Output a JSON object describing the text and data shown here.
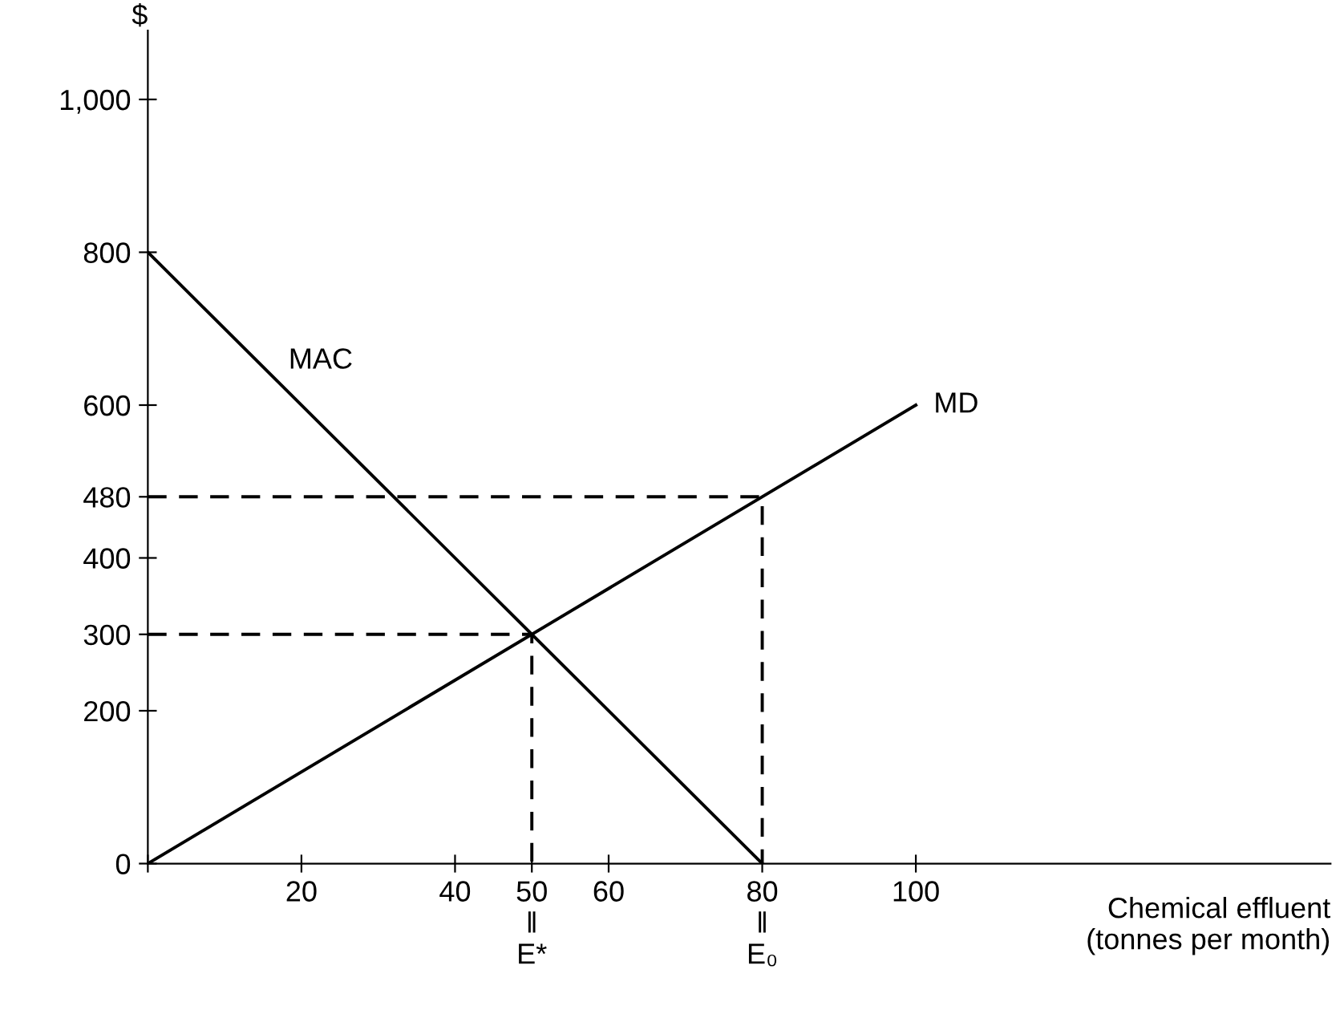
{
  "chart_data": {
    "type": "line",
    "xlabel": "Chemical effluent\n(tonnes per month)",
    "ylabel": "$",
    "xlim": [
      0,
      154
    ],
    "ylim": [
      0,
      1090
    ],
    "xticks": [
      {
        "value": 0,
        "label": null
      },
      20,
      40,
      {
        "value": 50,
        "label": "50\n‖\nE*"
      },
      60,
      {
        "value": 80,
        "label": "80\n‖\nE₀"
      },
      100
    ],
    "yticks": [
      0,
      200,
      300,
      400,
      480,
      600,
      800,
      {
        "value": 1000,
        "label": "1,000"
      }
    ],
    "grid": false,
    "legend": false,
    "series": [
      {
        "name": "MAC",
        "color": "#000000",
        "x": [
          0,
          80
        ],
        "values": [
          800,
          0
        ],
        "line_style": "solid"
      },
      {
        "name": "MD",
        "color": "#000000",
        "x": [
          0,
          100
        ],
        "values": [
          0,
          600
        ],
        "line_style": "solid"
      },
      {
        "color": "#000000",
        "x": [
          0,
          50,
          50
        ],
        "values": [
          300,
          300,
          0
        ],
        "line_style": "dashed"
      },
      {
        "color": "#000000",
        "x": [
          0,
          80,
          80
        ],
        "values": [
          480,
          480,
          0
        ],
        "line_style": "dashed"
      }
    ]
  }
}
